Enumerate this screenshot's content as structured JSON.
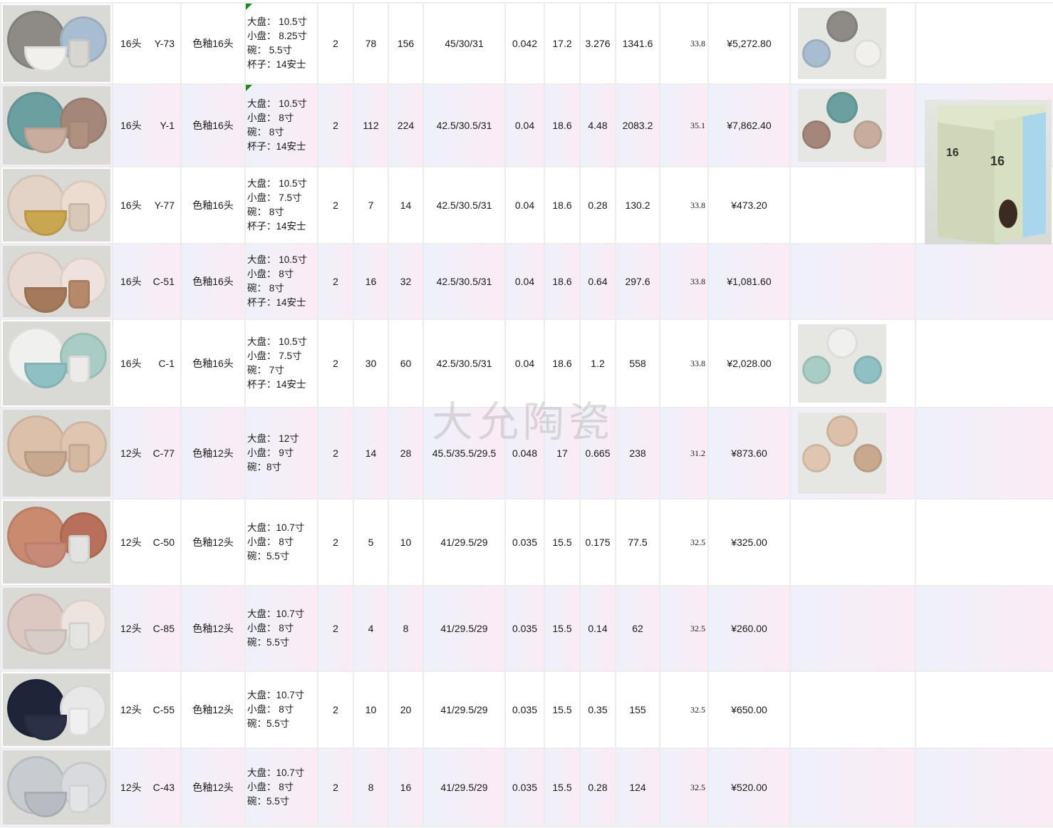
{
  "watermark": "大允陶瓷",
  "box_photo": {
    "label": "16",
    "colors": [
      "#cfd7b8",
      "#a9d6ec"
    ]
  },
  "rows": [
    {
      "pcs": "16头",
      "code": "Y-73",
      "type": "色釉16头",
      "spec": [
        "大盘： 10.5寸",
        "小盘： 8.25寸",
        "碗：    5.5寸",
        "杯子：14安士"
      ],
      "flag": true,
      "qty": "2",
      "ctn": "78",
      "sets": "156",
      "dims": "45/30/31",
      "cbm": "0.042",
      "kg": "17.2",
      "tcbm": "3.276",
      "tkg": "1341.6",
      "price": "33.8",
      "amount": "¥5,272.80",
      "colors": [
        "#8e8b87",
        "#a9bdd0",
        "#f2f0ec",
        "#d8d6d2"
      ],
      "back": true
    },
    {
      "pcs": "16头",
      "code": "Y-1",
      "type": "色釉16头",
      "spec": [
        "大盘： 10.5寸",
        "小盘： 8寸",
        "碗： 8寸",
        "杯子：14安士"
      ],
      "flag": true,
      "qty": "2",
      "ctn": "112",
      "sets": "224",
      "dims": "42.5/30.5/31",
      "cbm": "0.04",
      "kg": "18.6",
      "tcbm": "4.48",
      "tkg": "2083.2",
      "price": "35.1",
      "amount": "¥7,862.40",
      "colors": [
        "#6c9fa0",
        "#a4877a",
        "#c8ad9e",
        "#b09080"
      ],
      "back": true
    },
    {
      "pcs": "16头",
      "code": "Y-77",
      "type": "色釉16头",
      "spec": [
        "大盘： 10.5寸",
        "小盘： 7.5寸",
        "碗： 8寸",
        "杯子：14安士"
      ],
      "flag": false,
      "qty": "2",
      "ctn": "7",
      "sets": "14",
      "dims": "42.5/30.5/31",
      "cbm": "0.04",
      "kg": "18.6",
      "tcbm": "0.28",
      "tkg": "130.2",
      "price": "33.8",
      "amount": "¥473.20",
      "colors": [
        "#e2d3c6",
        "#ecdcd0",
        "#c9a650",
        "#d8c8b8"
      ],
      "back": false
    },
    {
      "pcs": "16头",
      "code": "C-51",
      "type": "色釉16头",
      "spec": [
        "大盘： 10.5寸",
        "小盘： 8寸",
        "碗： 8寸",
        "杯子：14安士"
      ],
      "flag": false,
      "qty": "2",
      "ctn": "16",
      "sets": "32",
      "dims": "42.5/30.5/31",
      "cbm": "0.04",
      "kg": "18.6",
      "tcbm": "0.64",
      "tkg": "297.6",
      "price": "33.8",
      "amount": "¥1,081.60",
      "colors": [
        "#e8d9d3",
        "#efe2dc",
        "#a57a5a",
        "#b5896a"
      ],
      "back": false
    },
    {
      "pcs": "16头",
      "code": "C-1",
      "type": "色釉16头",
      "spec": [
        "大盘： 10.5寸",
        "小盘： 7.5寸",
        "碗： 7寸",
        "杯子：14安士"
      ],
      "flag": false,
      "qty": "2",
      "ctn": "30",
      "sets": "60",
      "dims": "42.5/30.5/31",
      "cbm": "0.04",
      "kg": "18.6",
      "tcbm": "1.2",
      "tkg": "558",
      "price": "33.8",
      "amount": "¥2,028.00",
      "colors": [
        "#f0f0ef",
        "#a9cdc4",
        "#8fc0c4",
        "#ecebea"
      ],
      "back": true
    },
    {
      "pcs": "12头",
      "code": "C-77",
      "type": "色釉12头",
      "spec": [
        "大盘： 12寸",
        "小盘： 9寸",
        "碗：8寸"
      ],
      "flag": false,
      "qty": "2",
      "ctn": "14",
      "sets": "28",
      "dims": "45.5/35.5/29.5",
      "cbm": "0.048",
      "kg": "17",
      "tcbm": "0.665",
      "tkg": "238",
      "price": "31.2",
      "amount": "¥873.60",
      "colors": [
        "#dcc0aa",
        "#e0c6b0",
        "#c9a890",
        "#d4b8a0"
      ],
      "back": true
    },
    {
      "pcs": "12头",
      "code": "C-50",
      "type": "色釉12头",
      "spec": [
        "大盘：10.7寸",
        "小盘： 8寸",
        "碗：5.5寸"
      ],
      "flag": false,
      "qty": "2",
      "ctn": "5",
      "sets": "10",
      "dims": "41/29.5/29",
      "cbm": "0.035",
      "kg": "15.5",
      "tcbm": "0.175",
      "tkg": "77.5",
      "price": "32.5",
      "amount": "¥325.00",
      "colors": [
        "#c98a70",
        "#b8705a",
        "#c88a78",
        "#e2e2e0"
      ],
      "back": false
    },
    {
      "pcs": "12头",
      "code": "C-85",
      "type": "色釉12头",
      "spec": [
        "大盘：10.7寸",
        "小盘： 8寸",
        "碗：5.5寸"
      ],
      "flag": false,
      "qty": "2",
      "ctn": "4",
      "sets": "8",
      "dims": "41/29.5/29",
      "cbm": "0.035",
      "kg": "15.5",
      "tcbm": "0.14",
      "tkg": "62",
      "price": "32.5",
      "amount": "¥260.00",
      "colors": [
        "#dcc8c0",
        "#ece4df",
        "#d8cdc6",
        "#e4e4e2"
      ],
      "back": false
    },
    {
      "pcs": "12头",
      "code": "C-55",
      "type": "色釉12头",
      "spec": [
        "大盘：10.7寸",
        "小盘： 8寸",
        "碗：5.5寸"
      ],
      "flag": false,
      "qty": "2",
      "ctn": "10",
      "sets": "20",
      "dims": "41/29.5/29",
      "cbm": "0.035",
      "kg": "15.5",
      "tcbm": "0.35",
      "tkg": "155",
      "price": "32.5",
      "amount": "¥650.00",
      "colors": [
        "#1f2538",
        "#e8e8e8",
        "#2a3045",
        "#f0f0f0"
      ],
      "back": false
    },
    {
      "pcs": "12头",
      "code": "C-43",
      "type": "色釉12头",
      "spec": [
        "大盘：10.7寸",
        "小盘： 8寸",
        "碗：5.5寸"
      ],
      "flag": false,
      "qty": "2",
      "ctn": "8",
      "sets": "16",
      "dims": "41/29.5/29",
      "cbm": "0.035",
      "kg": "15.5",
      "tcbm": "0.28",
      "tkg": "124",
      "price": "32.5",
      "amount": "¥520.00",
      "colors": [
        "#c8ccd0",
        "#d8dade",
        "#b8bcc2",
        "#e2e4e6"
      ],
      "back": false
    }
  ]
}
